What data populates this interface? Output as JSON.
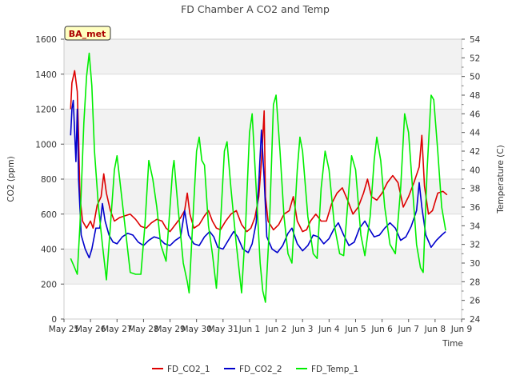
{
  "chart_data": {
    "type": "line",
    "title": "FD Chamber A CO2 and Temp",
    "badge": "BA_met",
    "xlabel": "Time",
    "ylabel": "CO2 (ppm)",
    "y2label": "Temperature (C)",
    "ylim": [
      0,
      1600
    ],
    "y2lim": [
      24,
      54
    ],
    "xlim": [
      0,
      15
    ],
    "x_unit": "days since May 25",
    "yticks": [
      0,
      200,
      400,
      600,
      800,
      1000,
      1200,
      1400,
      1600
    ],
    "y2ticks": [
      24,
      26,
      28,
      30,
      32,
      34,
      36,
      38,
      40,
      42,
      44,
      46,
      48,
      50,
      52,
      54
    ],
    "xticks": [
      "May 25",
      "May 26",
      "May 27",
      "May 28",
      "May 29",
      "May 30",
      "May 31",
      "Jun 1",
      "Jun 2",
      "Jun 3",
      "Jun 4",
      "Jun 5",
      "Jun 6",
      "Jun 7",
      "Jun 8",
      "Jun 9"
    ],
    "grid": true,
    "band_shading": true,
    "legend_position": "bottom",
    "series": [
      {
        "name": "FD_CO2_1",
        "axis": "left",
        "color": "#dd0000",
        "points": [
          [
            0.25,
            1200
          ],
          [
            0.3,
            1350
          ],
          [
            0.4,
            1420
          ],
          [
            0.5,
            1300
          ],
          [
            0.55,
            1050
          ],
          [
            0.6,
            700
          ],
          [
            0.7,
            560
          ],
          [
            0.85,
            520
          ],
          [
            1.0,
            560
          ],
          [
            1.1,
            520
          ],
          [
            1.25,
            650
          ],
          [
            1.4,
            700
          ],
          [
            1.5,
            830
          ],
          [
            1.6,
            720
          ],
          [
            1.75,
            620
          ],
          [
            1.9,
            560
          ],
          [
            2.1,
            580
          ],
          [
            2.3,
            590
          ],
          [
            2.5,
            600
          ],
          [
            2.7,
            570
          ],
          [
            2.9,
            530
          ],
          [
            3.1,
            520
          ],
          [
            3.3,
            550
          ],
          [
            3.5,
            570
          ],
          [
            3.7,
            560
          ],
          [
            3.85,
            520
          ],
          [
            4.0,
            500
          ],
          [
            4.2,
            540
          ],
          [
            4.4,
            580
          ],
          [
            4.55,
            620
          ],
          [
            4.65,
            720
          ],
          [
            4.75,
            600
          ],
          [
            4.9,
            520
          ],
          [
            5.1,
            540
          ],
          [
            5.3,
            590
          ],
          [
            5.45,
            620
          ],
          [
            5.6,
            560
          ],
          [
            5.75,
            520
          ],
          [
            5.9,
            510
          ],
          [
            6.1,
            560
          ],
          [
            6.3,
            600
          ],
          [
            6.5,
            620
          ],
          [
            6.7,
            540
          ],
          [
            6.9,
            500
          ],
          [
            7.05,
            520
          ],
          [
            7.2,
            580
          ],
          [
            7.35,
            700
          ],
          [
            7.45,
            900
          ],
          [
            7.55,
            1190
          ],
          [
            7.6,
            700
          ],
          [
            7.7,
            560
          ],
          [
            7.9,
            510
          ],
          [
            8.1,
            540
          ],
          [
            8.3,
            600
          ],
          [
            8.5,
            620
          ],
          [
            8.65,
            700
          ],
          [
            8.8,
            560
          ],
          [
            9.0,
            500
          ],
          [
            9.15,
            510
          ],
          [
            9.3,
            560
          ],
          [
            9.5,
            600
          ],
          [
            9.7,
            560
          ],
          [
            9.9,
            560
          ],
          [
            10.1,
            660
          ],
          [
            10.3,
            720
          ],
          [
            10.5,
            750
          ],
          [
            10.7,
            680
          ],
          [
            10.9,
            600
          ],
          [
            11.1,
            640
          ],
          [
            11.3,
            720
          ],
          [
            11.45,
            800
          ],
          [
            11.6,
            700
          ],
          [
            11.8,
            680
          ],
          [
            12.0,
            720
          ],
          [
            12.2,
            780
          ],
          [
            12.4,
            820
          ],
          [
            12.6,
            780
          ],
          [
            12.8,
            640
          ],
          [
            13.0,
            700
          ],
          [
            13.2,
            780
          ],
          [
            13.4,
            870
          ],
          [
            13.5,
            1050
          ],
          [
            13.6,
            760
          ],
          [
            13.75,
            600
          ],
          [
            13.9,
            620
          ],
          [
            14.1,
            720
          ],
          [
            14.3,
            730
          ],
          [
            14.45,
            710
          ]
        ]
      },
      {
        "name": "FD_CO2_2",
        "axis": "left",
        "color": "#0000cc",
        "points": [
          [
            0.25,
            1050
          ],
          [
            0.3,
            1200
          ],
          [
            0.35,
            1250
          ],
          [
            0.45,
            900
          ],
          [
            0.5,
            1200
          ],
          [
            0.55,
            800
          ],
          [
            0.65,
            480
          ],
          [
            0.8,
            400
          ],
          [
            0.95,
            350
          ],
          [
            1.05,
            400
          ],
          [
            1.2,
            520
          ],
          [
            1.35,
            520
          ],
          [
            1.45,
            660
          ],
          [
            1.55,
            560
          ],
          [
            1.7,
            480
          ],
          [
            1.85,
            440
          ],
          [
            2.0,
            430
          ],
          [
            2.2,
            470
          ],
          [
            2.4,
            490
          ],
          [
            2.6,
            480
          ],
          [
            2.8,
            440
          ],
          [
            3.0,
            420
          ],
          [
            3.2,
            450
          ],
          [
            3.4,
            470
          ],
          [
            3.6,
            460
          ],
          [
            3.8,
            430
          ],
          [
            4.0,
            420
          ],
          [
            4.2,
            450
          ],
          [
            4.4,
            470
          ],
          [
            4.55,
            620
          ],
          [
            4.7,
            480
          ],
          [
            4.9,
            430
          ],
          [
            5.1,
            420
          ],
          [
            5.3,
            470
          ],
          [
            5.5,
            500
          ],
          [
            5.65,
            470
          ],
          [
            5.8,
            410
          ],
          [
            6.0,
            400
          ],
          [
            6.2,
            450
          ],
          [
            6.4,
            500
          ],
          [
            6.55,
            470
          ],
          [
            6.75,
            400
          ],
          [
            6.95,
            380
          ],
          [
            7.1,
            430
          ],
          [
            7.25,
            550
          ],
          [
            7.35,
            780
          ],
          [
            7.45,
            1080
          ],
          [
            7.55,
            800
          ],
          [
            7.65,
            470
          ],
          [
            7.85,
            400
          ],
          [
            8.05,
            380
          ],
          [
            8.25,
            420
          ],
          [
            8.45,
            490
          ],
          [
            8.6,
            520
          ],
          [
            8.8,
            430
          ],
          [
            9.0,
            390
          ],
          [
            9.2,
            420
          ],
          [
            9.4,
            480
          ],
          [
            9.6,
            470
          ],
          [
            9.8,
            430
          ],
          [
            10.0,
            460
          ],
          [
            10.2,
            520
          ],
          [
            10.35,
            550
          ],
          [
            10.55,
            480
          ],
          [
            10.75,
            420
          ],
          [
            10.95,
            440
          ],
          [
            11.15,
            520
          ],
          [
            11.35,
            560
          ],
          [
            11.5,
            520
          ],
          [
            11.7,
            470
          ],
          [
            11.9,
            480
          ],
          [
            12.1,
            520
          ],
          [
            12.3,
            550
          ],
          [
            12.5,
            520
          ],
          [
            12.7,
            450
          ],
          [
            12.9,
            470
          ],
          [
            13.1,
            530
          ],
          [
            13.3,
            620
          ],
          [
            13.4,
            780
          ],
          [
            13.5,
            640
          ],
          [
            13.65,
            480
          ],
          [
            13.85,
            410
          ],
          [
            14.05,
            450
          ],
          [
            14.25,
            480
          ],
          [
            14.4,
            500
          ]
        ]
      },
      {
        "name": "FD_Temp_1",
        "axis": "right",
        "color": "#00ee00",
        "points": [
          [
            0.25,
            30.5
          ],
          [
            0.4,
            29.5
          ],
          [
            0.5,
            28.8
          ],
          [
            0.6,
            34
          ],
          [
            0.75,
            45
          ],
          [
            0.85,
            50
          ],
          [
            0.95,
            52.5
          ],
          [
            1.05,
            49
          ],
          [
            1.15,
            42
          ],
          [
            1.3,
            36
          ],
          [
            1.45,
            32
          ],
          [
            1.6,
            28.2
          ],
          [
            1.75,
            34
          ],
          [
            1.9,
            40
          ],
          [
            2.0,
            41.5
          ],
          [
            2.1,
            39
          ],
          [
            2.3,
            34
          ],
          [
            2.5,
            29
          ],
          [
            2.7,
            28.8
          ],
          [
            2.9,
            28.8
          ],
          [
            3.05,
            34
          ],
          [
            3.2,
            41
          ],
          [
            3.35,
            39
          ],
          [
            3.5,
            36
          ],
          [
            3.65,
            32
          ],
          [
            3.85,
            30.2
          ],
          [
            4.0,
            36
          ],
          [
            4.1,
            40
          ],
          [
            4.15,
            41
          ],
          [
            4.3,
            36
          ],
          [
            4.5,
            30
          ],
          [
            4.65,
            28
          ],
          [
            4.72,
            26.8
          ],
          [
            4.85,
            34
          ],
          [
            5.0,
            42
          ],
          [
            5.1,
            43.5
          ],
          [
            5.2,
            41
          ],
          [
            5.3,
            40.5
          ],
          [
            5.45,
            34
          ],
          [
            5.6,
            31
          ],
          [
            5.75,
            27.3
          ],
          [
            5.9,
            34
          ],
          [
            6.05,
            42
          ],
          [
            6.15,
            43
          ],
          [
            6.3,
            38
          ],
          [
            6.5,
            32
          ],
          [
            6.7,
            26.8
          ],
          [
            6.85,
            34
          ],
          [
            7.0,
            44
          ],
          [
            7.1,
            46
          ],
          [
            7.25,
            38
          ],
          [
            7.4,
            30
          ],
          [
            7.5,
            27
          ],
          [
            7.6,
            25.8
          ],
          [
            7.75,
            34
          ],
          [
            7.9,
            47
          ],
          [
            8.0,
            48
          ],
          [
            8.15,
            42
          ],
          [
            8.3,
            35
          ],
          [
            8.45,
            31
          ],
          [
            8.6,
            30
          ],
          [
            8.8,
            40
          ],
          [
            8.9,
            43.5
          ],
          [
            9.0,
            42
          ],
          [
            9.2,
            35
          ],
          [
            9.4,
            31
          ],
          [
            9.55,
            30.5
          ],
          [
            9.7,
            38
          ],
          [
            9.85,
            42
          ],
          [
            10.0,
            40
          ],
          [
            10.2,
            34
          ],
          [
            10.4,
            31
          ],
          [
            10.55,
            30.8
          ],
          [
            10.75,
            38
          ],
          [
            10.85,
            41.5
          ],
          [
            11.0,
            40
          ],
          [
            11.2,
            33
          ],
          [
            11.35,
            30.8
          ],
          [
            11.55,
            35
          ],
          [
            11.7,
            41
          ],
          [
            11.8,
            43.5
          ],
          [
            11.95,
            41
          ],
          [
            12.1,
            36
          ],
          [
            12.3,
            32
          ],
          [
            12.5,
            31
          ],
          [
            12.7,
            38
          ],
          [
            12.85,
            46
          ],
          [
            13.0,
            44
          ],
          [
            13.15,
            38
          ],
          [
            13.3,
            32
          ],
          [
            13.45,
            29.5
          ],
          [
            13.55,
            29
          ],
          [
            13.7,
            40
          ],
          [
            13.85,
            48
          ],
          [
            13.95,
            47.5
          ],
          [
            14.1,
            42
          ],
          [
            14.25,
            36
          ],
          [
            14.4,
            33.5
          ]
        ]
      }
    ]
  }
}
